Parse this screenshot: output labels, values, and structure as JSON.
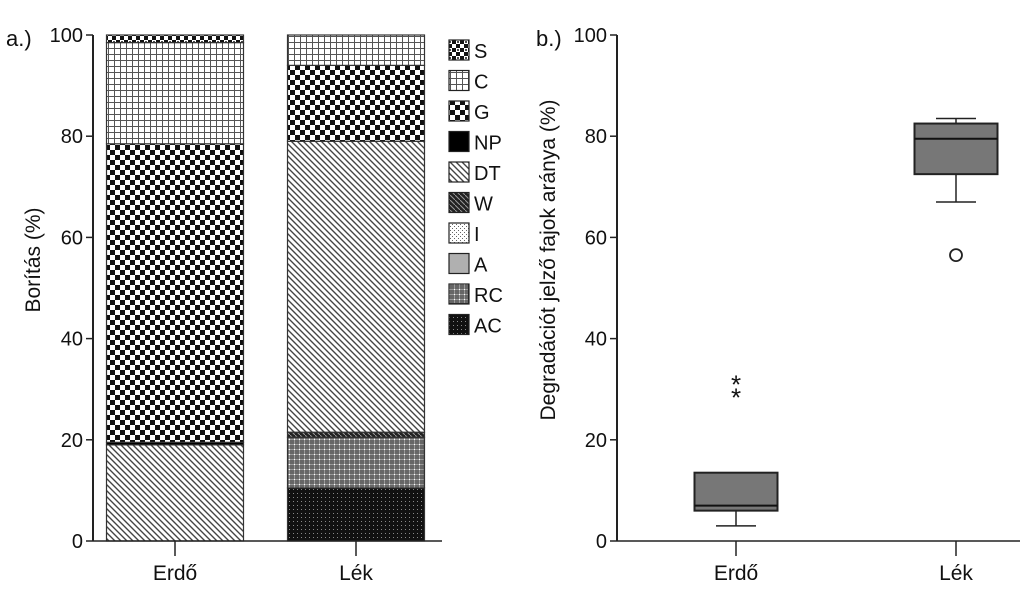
{
  "chart_data": [
    {
      "type": "bar",
      "panel_label": "a.)",
      "stacked": true,
      "ylabel": "Borítás (%)",
      "ylim": [
        0,
        100
      ],
      "yticks": [
        0,
        20,
        40,
        60,
        80,
        100
      ],
      "categories": [
        "Erdő",
        "Lék"
      ],
      "legend_position": "right",
      "series": [
        {
          "name": "AC",
          "values": [
            0,
            10.5
          ],
          "pattern": "pat-ac"
        },
        {
          "name": "RC",
          "values": [
            0,
            10
          ],
          "pattern": "pat-rc"
        },
        {
          "name": "A",
          "values": [
            0,
            0
          ],
          "pattern": "pat-a"
        },
        {
          "name": "I",
          "values": [
            0,
            0
          ],
          "pattern": "pat-i"
        },
        {
          "name": "W",
          "values": [
            0,
            1
          ],
          "pattern": "pat-w"
        },
        {
          "name": "DT",
          "values": [
            19,
            57.5
          ],
          "pattern": "pat-dt"
        },
        {
          "name": "NP",
          "values": [
            0.5,
            0
          ],
          "pattern": "pat-np"
        },
        {
          "name": "G",
          "values": [
            59,
            15
          ],
          "pattern": "pat-g"
        },
        {
          "name": "C",
          "values": [
            20,
            6
          ],
          "pattern": "pat-c"
        },
        {
          "name": "S",
          "values": [
            1.5,
            0
          ],
          "pattern": "pat-s"
        }
      ],
      "legend_order": [
        "S",
        "C",
        "G",
        "NP",
        "DT",
        "W",
        "I",
        "A",
        "RC",
        "AC"
      ]
    },
    {
      "type": "box",
      "panel_label": "b.)",
      "ylabel": "Degradációt jelző fajok aránya (%)",
      "ylim": [
        0,
        100
      ],
      "yticks": [
        0,
        20,
        40,
        60,
        80,
        100
      ],
      "categories": [
        "Erdő",
        "Lék"
      ],
      "boxes": [
        {
          "category": "Erdő",
          "whisker_low": 3,
          "q1": 6,
          "median": 7,
          "q3": 13.5,
          "whisker_high": 13.5,
          "extremes": [
            29,
            31.5
          ],
          "outliers": []
        },
        {
          "category": "Lék",
          "whisker_low": 67,
          "q1": 72.5,
          "median": 79.5,
          "q3": 82.5,
          "whisker_high": 83.5,
          "extremes": [],
          "outliers": [
            56.5
          ]
        }
      ],
      "box_color": "#777777"
    }
  ]
}
